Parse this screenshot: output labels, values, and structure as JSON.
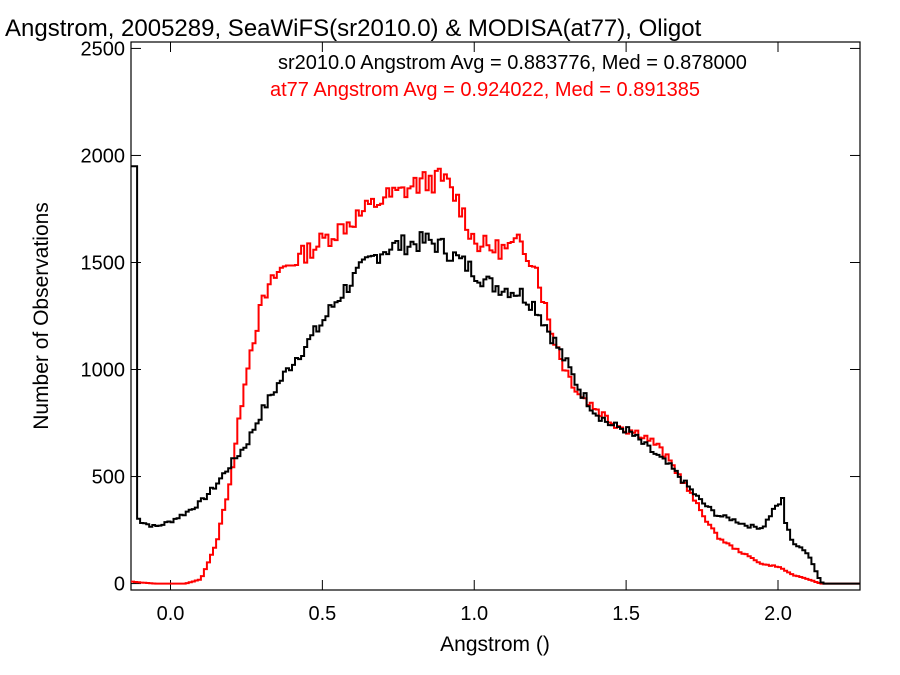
{
  "chart_data": {
    "type": "line",
    "step": true,
    "title": "Angstrom, 2005289, SeaWiFS(sr2010.0) & MODISA(at77), Oligot",
    "xlabel": "Angstrom ()",
    "ylabel": "Number of Observations",
    "xlim": [
      -0.13,
      2.27
    ],
    "ylim": [
      -30,
      2530
    ],
    "xticks": [
      0.0,
      0.5,
      1.0,
      1.5,
      2.0
    ],
    "xtick_labels": [
      "0.0",
      "0.5",
      "1.0",
      "1.5",
      "2.0"
    ],
    "yticks": [
      0,
      500,
      1000,
      1500,
      2000,
      2500
    ],
    "ytick_labels": [
      "0",
      "500",
      "1000",
      "1500",
      "2000",
      "2500"
    ],
    "grid": false,
    "annotations": [
      {
        "text": "sr2010.0 Angstrom Avg = 0.883776, Med = 0.878000",
        "color": "#000000"
      },
      {
        "text": "at77 Angstrom Avg = 0.924022, Med = 0.891385",
        "color": "#ff0000"
      }
    ],
    "series": [
      {
        "color": "#000000",
        "x": [
          -0.13,
          -0.12,
          -0.11,
          -0.1,
          -0.05,
          0.0,
          0.05,
          0.1,
          0.15,
          0.2,
          0.25,
          0.3,
          0.35,
          0.4,
          0.45,
          0.5,
          0.55,
          0.6,
          0.65,
          0.7,
          0.75,
          0.8,
          0.85,
          0.9,
          0.95,
          1.0,
          1.05,
          1.1,
          1.15,
          1.2,
          1.25,
          1.3,
          1.35,
          1.4,
          1.45,
          1.5,
          1.55,
          1.6,
          1.65,
          1.7,
          1.75,
          1.8,
          1.85,
          1.9,
          1.95,
          2.0,
          2.05,
          2.1,
          2.14,
          2.15,
          2.2,
          2.27
        ],
        "y": [
          1330,
          1950,
          330,
          290,
          265,
          290,
          330,
          380,
          460,
          560,
          650,
          800,
          920,
          1030,
          1120,
          1220,
          1330,
          1420,
          1500,
          1560,
          1580,
          1590,
          1600,
          1570,
          1510,
          1460,
          1400,
          1380,
          1360,
          1300,
          1170,
          1040,
          900,
          800,
          740,
          720,
          660,
          600,
          540,
          460,
          380,
          320,
          300,
          270,
          260,
          380,
          190,
          140,
          10,
          0,
          0,
          0
        ],
        "spikes": [
          {
            "x": -0.125,
            "y": 1950
          },
          {
            "x": 2.01,
            "y": 400
          }
        ]
      },
      {
        "color": "#ff0000",
        "x": [
          -0.13,
          -0.1,
          -0.05,
          0.0,
          0.05,
          0.1,
          0.15,
          0.2,
          0.25,
          0.3,
          0.35,
          0.4,
          0.45,
          0.5,
          0.55,
          0.6,
          0.65,
          0.7,
          0.75,
          0.8,
          0.85,
          0.9,
          0.95,
          1.0,
          1.05,
          1.1,
          1.15,
          1.2,
          1.25,
          1.3,
          1.35,
          1.4,
          1.45,
          1.5,
          1.55,
          1.6,
          1.65,
          1.7,
          1.75,
          1.8,
          1.85,
          1.9,
          1.95,
          2.0,
          2.05,
          2.1,
          2.14,
          2.15,
          2.2,
          2.27
        ],
        "y": [
          10,
          5,
          0,
          0,
          0,
          20,
          180,
          500,
          1000,
          1300,
          1450,
          1500,
          1550,
          1600,
          1650,
          1700,
          1750,
          1800,
          1820,
          1860,
          1880,
          1890,
          1780,
          1600,
          1570,
          1560,
          1590,
          1500,
          1200,
          1000,
          880,
          820,
          760,
          720,
          700,
          650,
          560,
          450,
          330,
          220,
          170,
          130,
          90,
          80,
          40,
          20,
          0,
          0,
          0,
          0
        ]
      }
    ]
  }
}
